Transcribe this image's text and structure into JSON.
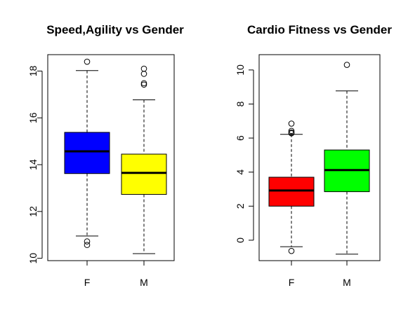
{
  "chart_data": [
    {
      "type": "boxplot",
      "title": "Speed,Agility vs Gender",
      "categories": [
        "F",
        "M"
      ],
      "colors": [
        "#0000ff",
        "#ffff00"
      ],
      "ylim": [
        9.9,
        18.7
      ],
      "yticks": [
        "10",
        "12",
        "14",
        "16",
        "18"
      ],
      "boxes": [
        {
          "category": "F",
          "whisker_low": 10.95,
          "q1": 13.62,
          "median": 14.57,
          "q3": 15.38,
          "whisker_high": 18.02,
          "outliers": [
            18.4,
            10.72,
            10.57
          ]
        },
        {
          "category": "M",
          "whisker_low": 10.2,
          "q1": 12.73,
          "median": 13.65,
          "q3": 14.45,
          "whisker_high": 16.77,
          "outliers": [
            18.1,
            17.88,
            17.48,
            17.42
          ]
        }
      ]
    },
    {
      "type": "boxplot",
      "title": "Cardio Fitness vs Gender",
      "categories": [
        "F",
        "M"
      ],
      "colors": [
        "#ff0000",
        "#00ff00"
      ],
      "ylim": [
        -1.2,
        10.9
      ],
      "yticks": [
        "0",
        "2",
        "4",
        "6",
        "8",
        "10"
      ],
      "boxes": [
        {
          "category": "F",
          "whisker_low": -0.38,
          "q1": 2.0,
          "median": 2.92,
          "q3": 3.7,
          "whisker_high": 6.22,
          "outliers": [
            6.85,
            6.42,
            6.33,
            6.28,
            -0.63
          ]
        },
        {
          "category": "M",
          "whisker_low": -0.82,
          "q1": 2.85,
          "median": 4.12,
          "q3": 5.3,
          "whisker_high": 8.77,
          "outliers": [
            10.3
          ]
        }
      ]
    }
  ]
}
